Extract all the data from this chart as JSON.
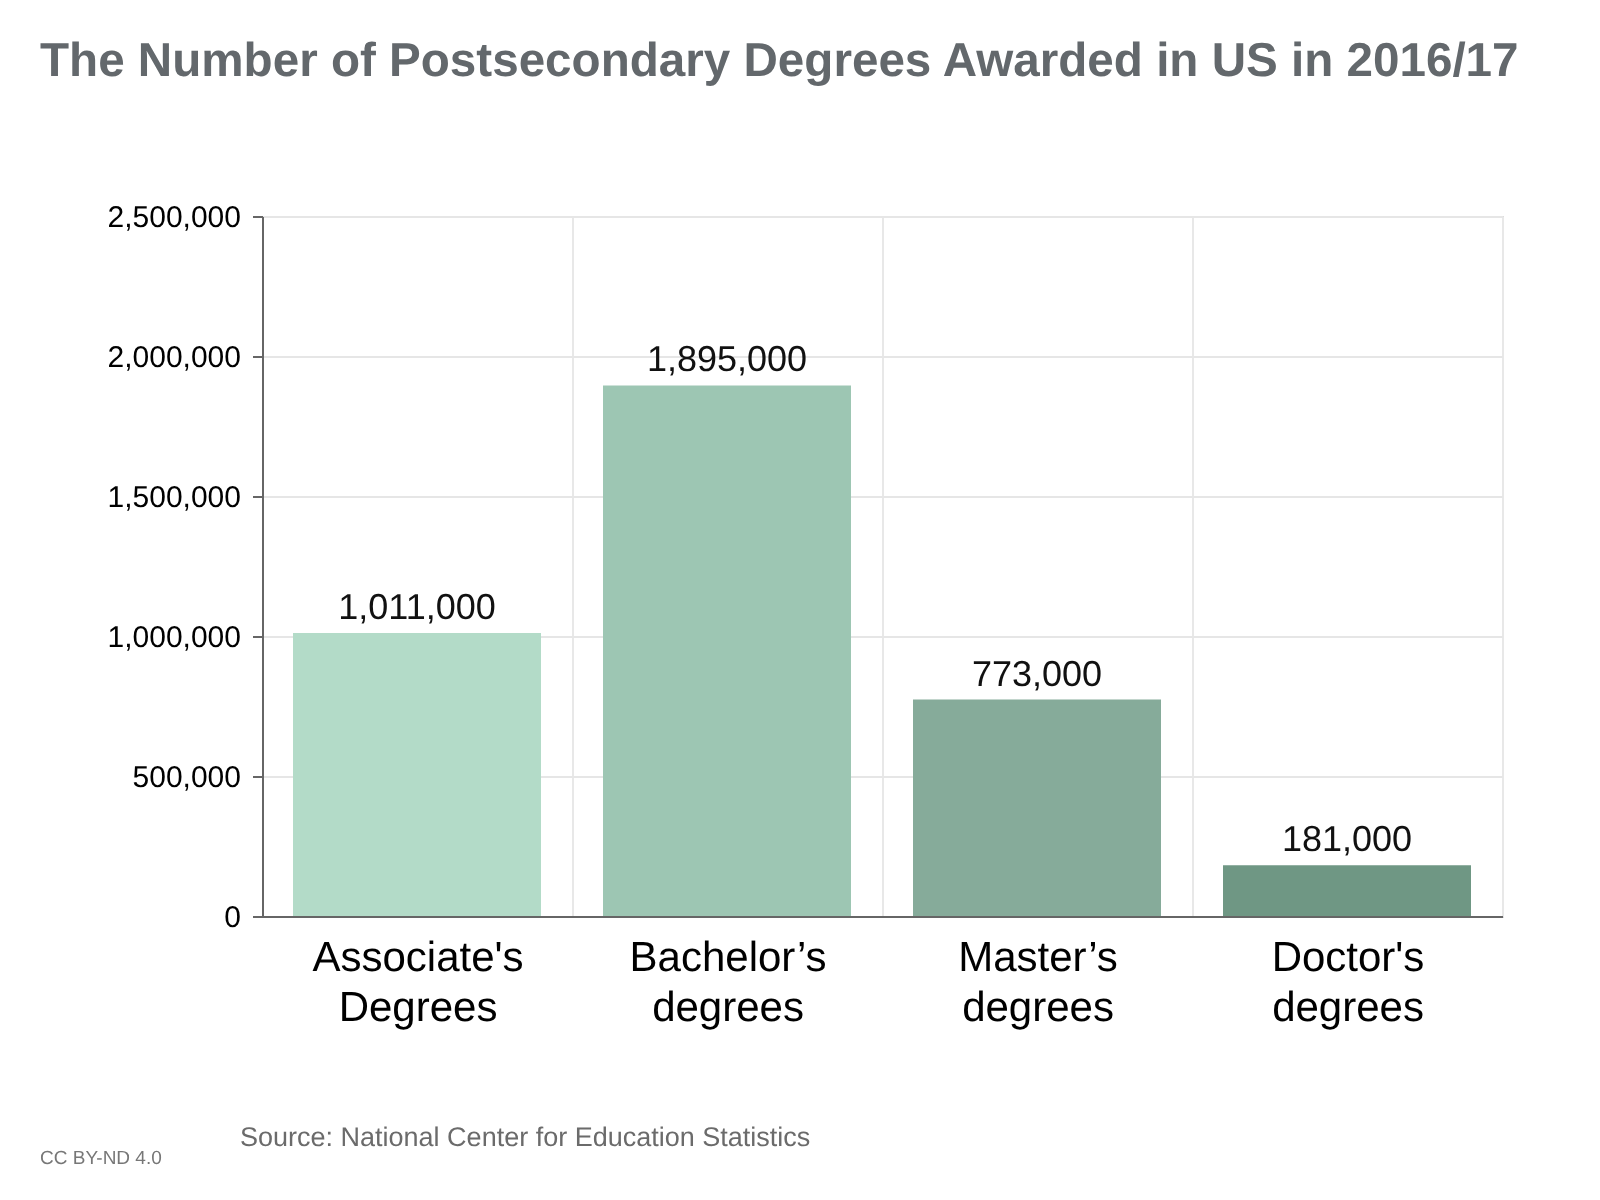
{
  "chart_data": {
    "type": "bar",
    "title": "The Number of Postsecondary Degrees Awarded in US in 2016/17",
    "categories": [
      "Associate's Degrees",
      "Bachelor’s degrees",
      "Master’s degrees",
      "Doctor's degrees"
    ],
    "values": [
      1011000,
      1895000,
      773000,
      181000
    ],
    "value_labels": [
      "1,011,000",
      "1,895,000",
      "773,000",
      "181,000"
    ],
    "colors": [
      "#b3dbc8",
      "#9dc6b3",
      "#86ab9a",
      "#6f9784"
    ],
    "ylim": [
      0,
      2500000
    ],
    "yticks": [
      0,
      {
        "value": 500000,
        "label": "500,000"
      },
      {
        "value": 1000000,
        "label": "1,000,000"
      },
      {
        "value": 1500000,
        "label": "1,500,000"
      },
      {
        "value": 2000000,
        "label": "2,000,000"
      },
      {
        "value": 2500000,
        "label": "2,500,000"
      }
    ],
    "grid": true,
    "annotations": [
      "Source: National Center for Education Statistics",
      "CC BY-ND 4.0"
    ]
  }
}
